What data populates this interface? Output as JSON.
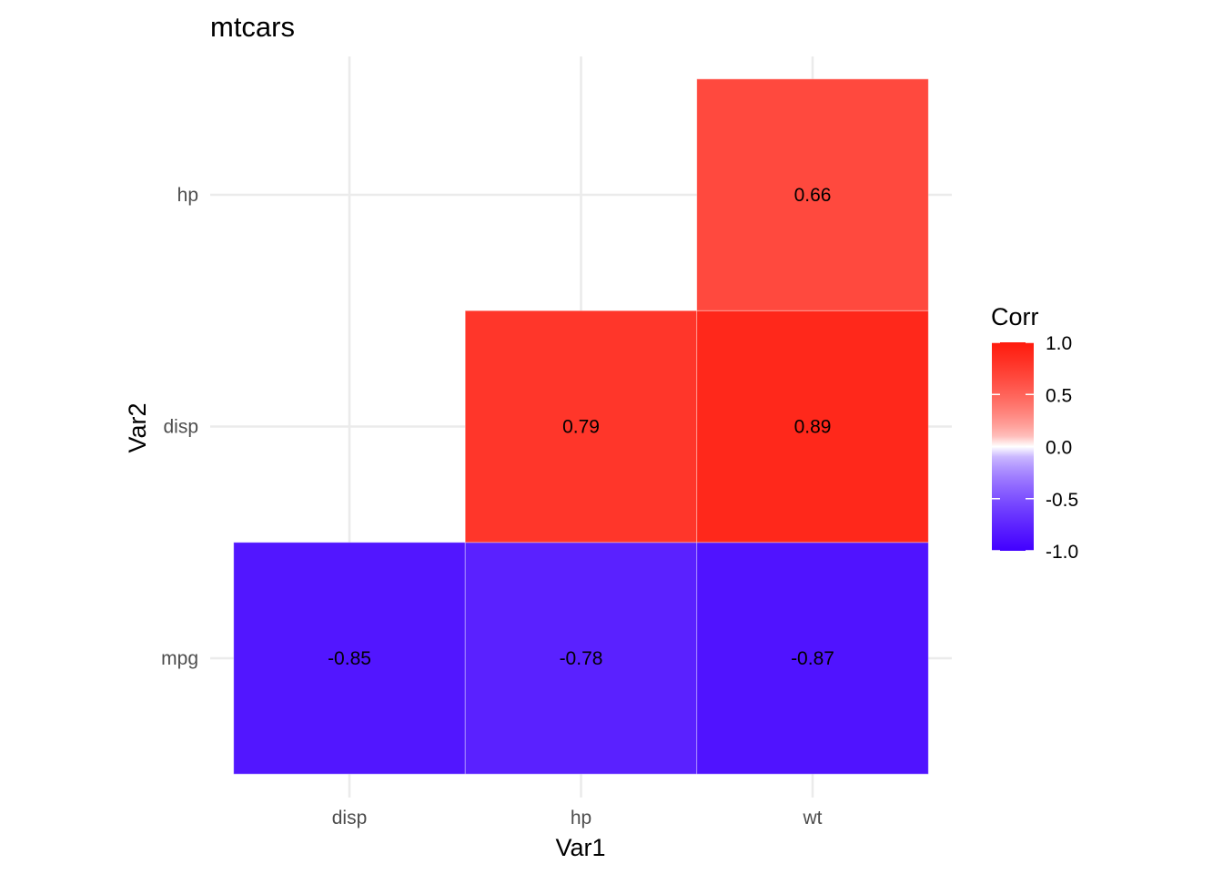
{
  "chart_data": {
    "type": "heatmap",
    "title": "mtcars",
    "xlabel": "Var1",
    "ylabel": "Var2",
    "x_categories": [
      "disp",
      "hp",
      "wt"
    ],
    "y_categories": [
      "mpg",
      "disp",
      "hp"
    ],
    "cells": [
      {
        "x": "disp",
        "y": "mpg",
        "value": -0.85,
        "label": "-0.85"
      },
      {
        "x": "hp",
        "y": "mpg",
        "value": -0.78,
        "label": "-0.78"
      },
      {
        "x": "wt",
        "y": "mpg",
        "value": -0.87,
        "label": "-0.87"
      },
      {
        "x": "hp",
        "y": "disp",
        "value": 0.79,
        "label": "0.79"
      },
      {
        "x": "wt",
        "y": "disp",
        "value": 0.89,
        "label": "0.89"
      },
      {
        "x": "wt",
        "y": "hp",
        "value": 0.66,
        "label": "0.66"
      }
    ],
    "legend": {
      "title": "Corr",
      "breaks": [
        "1.0",
        "0.5",
        "0.0",
        "-0.5",
        "-1.0"
      ],
      "break_values": [
        1.0,
        0.5,
        0.0,
        -0.5,
        -1.0
      ],
      "limits": [
        -1,
        1
      ],
      "low_color": "#0000ff",
      "mid_color": "#ffffff",
      "high_color": "#ff0000",
      "placement": "right"
    },
    "grid": true,
    "background_color": "#ffffff",
    "grid_color": "#ebebeb"
  }
}
